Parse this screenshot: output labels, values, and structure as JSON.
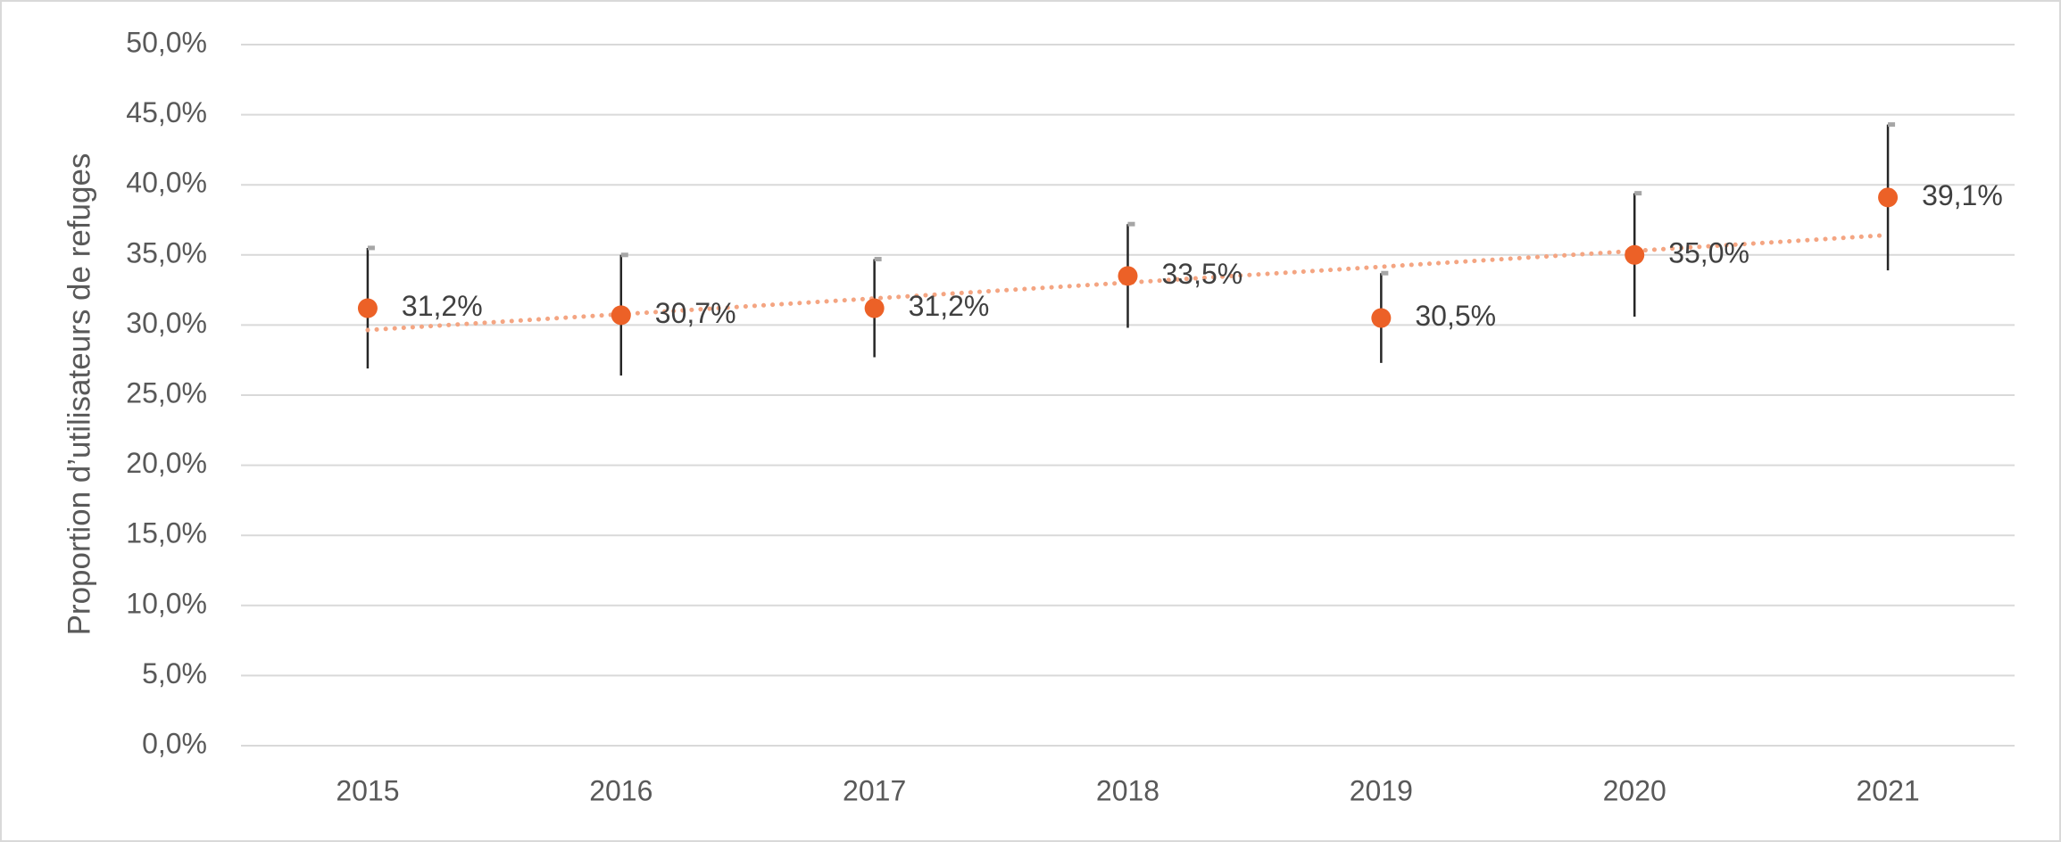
{
  "chart_data": {
    "type": "scatter",
    "y_label": "Proportion d’utilisateurs de refuges",
    "categories": [
      "2015",
      "2016",
      "2017",
      "2018",
      "2019",
      "2020",
      "2021"
    ],
    "values": [
      31.2,
      30.7,
      31.2,
      33.5,
      30.5,
      35.0,
      39.1
    ],
    "value_labels": [
      "31,2%",
      "30,7%",
      "31,2%",
      "33,5%",
      "30,5%",
      "35,0%",
      "39,1%"
    ],
    "errors": [
      4.3,
      4.3,
      3.5,
      3.7,
      3.2,
      4.4,
      5.2
    ],
    "color": "#ec6127",
    "error_color": "#262626",
    "trendline": true,
    "trendline_color": "#f4a582",
    "ylim": [
      0,
      50
    ],
    "yticks": [
      {
        "value": 0,
        "label": "0,0%"
      },
      {
        "value": 5,
        "label": "5,0%"
      },
      {
        "value": 10,
        "label": "10,0%"
      },
      {
        "value": 15,
        "label": "15,0%"
      },
      {
        "value": 20,
        "label": "20,0%"
      },
      {
        "value": 25,
        "label": "25,0%"
      },
      {
        "value": 30,
        "label": "30,0%"
      },
      {
        "value": 35,
        "label": "35,0%"
      },
      {
        "value": 40,
        "label": "40,0%"
      },
      {
        "value": 45,
        "label": "45,0%"
      },
      {
        "value": 50,
        "label": "50,0%"
      }
    ],
    "grid": true
  }
}
